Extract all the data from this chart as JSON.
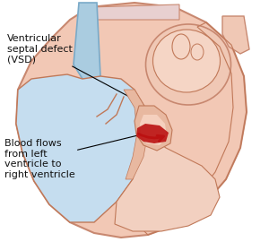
{
  "bg_color": "#ffffff",
  "heart_outer_color": "#f2c8b5",
  "heart_outer_edge": "#c88870",
  "lv_fill": "#c5ddef",
  "rv_fill": "#f2d0c0",
  "wall_color": "#e8b8a0",
  "wall_edge": "#c07858",
  "atria_fill": "#f0c8b5",
  "blood_color": "#bb1111",
  "annotation_color": "#111111",
  "label_vsd": "Ventricular\nseptal defect\n(VSD)",
  "label_blood": "Blood flows\nfrom left\nventricle to\nright ventricle",
  "fontsize": 8.0,
  "figsize": [
    3.0,
    2.7
  ],
  "dpi": 100
}
